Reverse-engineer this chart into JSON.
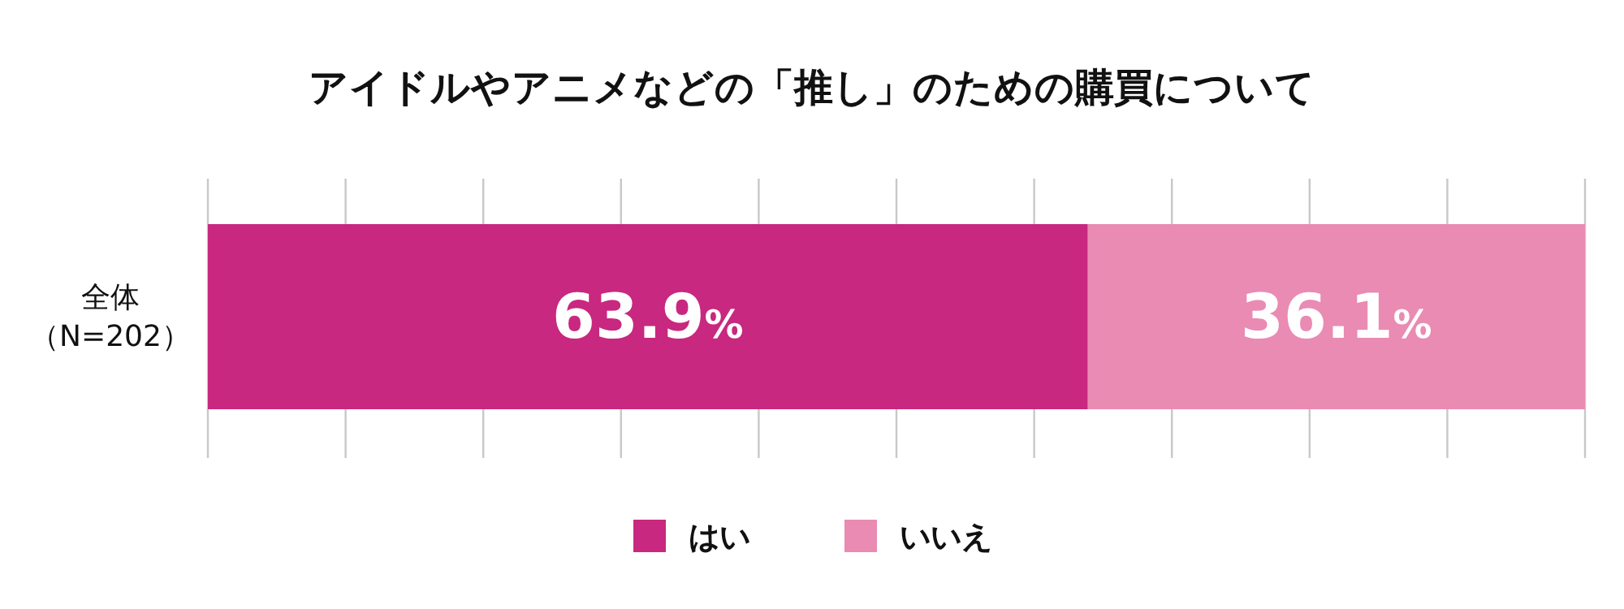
{
  "chart_data": {
    "type": "bar",
    "title": "アイドルやアニメなどの「推し」のための購買について",
    "orientation": "horizontal",
    "stacked": true,
    "categories": [
      "全体（N=202）"
    ],
    "series": [
      {
        "name": "はい",
        "color": "#c8287f",
        "values": [
          63.9
        ],
        "value_labels": [
          "63.9%"
        ]
      },
      {
        "name": "いいえ",
        "color": "#e98bb3",
        "values": [
          36.1
        ],
        "value_labels": [
          "36.1%"
        ]
      }
    ],
    "xlim": [
      0,
      100
    ],
    "xticks": [
      {
        "value": 0,
        "label": null
      },
      {
        "value": 10,
        "label": null
      },
      {
        "value": 20,
        "label": null
      },
      {
        "value": 30,
        "label": null
      },
      {
        "value": 40,
        "label": null
      },
      {
        "value": 50,
        "label": null
      },
      {
        "value": 60,
        "label": null
      },
      {
        "value": 70,
        "label": null
      },
      {
        "value": 80,
        "label": null
      },
      {
        "value": 90,
        "label": null
      },
      {
        "value": 100,
        "label": null
      }
    ],
    "tick_labels": "y",
    "grid": "x",
    "legend": "bottom"
  }
}
